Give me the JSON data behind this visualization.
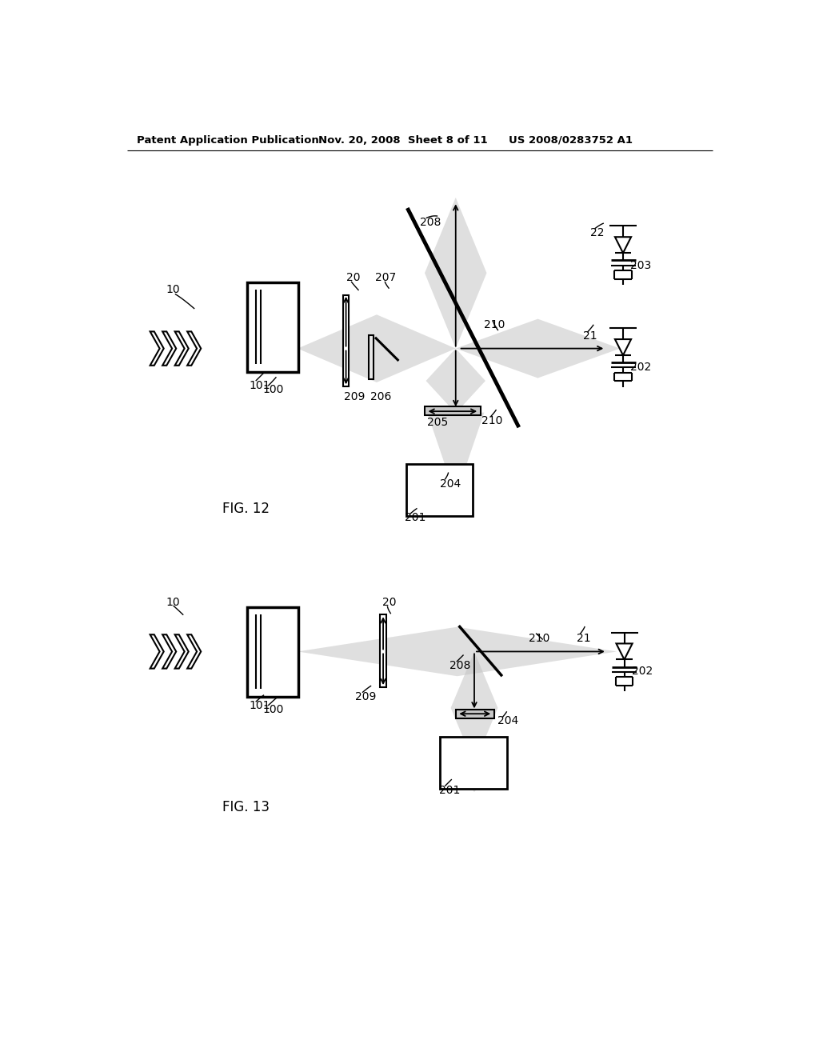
{
  "bg": "#ffffff",
  "black": "#000000",
  "gray_beam": "#c0c0c0",
  "header_left": "Patent Application Publication",
  "header_mid": "Nov. 20, 2008  Sheet 8 of 11",
  "header_right": "US 2008/0283752 A1",
  "fig12_caption": "FIG. 12",
  "fig13_caption": "FIG. 13"
}
